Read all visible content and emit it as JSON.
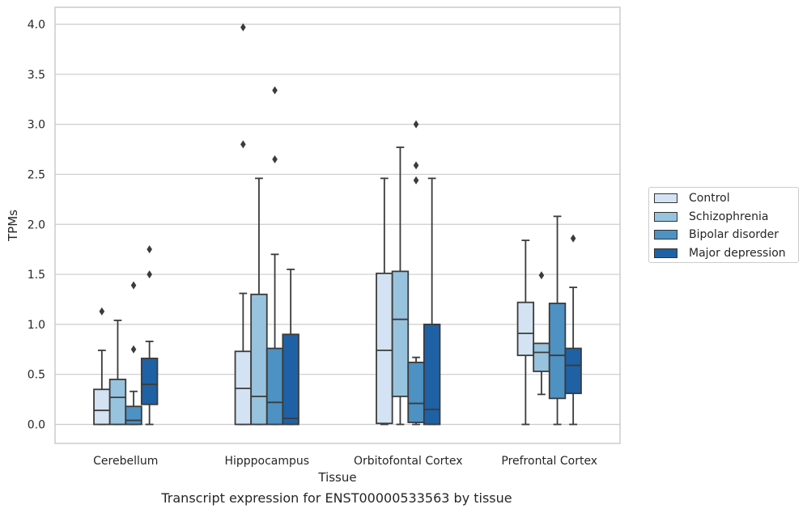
{
  "chart_data": {
    "type": "box",
    "title": "",
    "caption": "Transcript expression for ENST00000533563 by tissue",
    "xlabel": "Tissue",
    "ylabel": "TPMs",
    "ylim": [
      -0.19,
      4.17
    ],
    "yticks": [
      "0.0",
      "0.5",
      "1.0",
      "1.5",
      "2.0",
      "2.5",
      "3.0",
      "3.5",
      "4.0"
    ],
    "grid": "horizontal",
    "legend_position": "right",
    "categories": [
      "Cerebellum",
      "Hipppocampus",
      "Orbitofontal Cortex",
      "Prefrontal Cortex"
    ],
    "series": [
      {
        "name": "Control",
        "color": "#d4e3f3",
        "boxes": [
          {
            "whislo": 0.0,
            "q1": 0.0,
            "med": 0.14,
            "q3": 0.35,
            "whishi": 0.74,
            "fliers": [
              1.13
            ]
          },
          {
            "whislo": 0.0,
            "q1": 0.0,
            "med": 0.36,
            "q3": 0.73,
            "whishi": 1.31,
            "fliers": [
              2.8,
              3.97
            ]
          },
          {
            "whislo": 0.0,
            "q1": 0.01,
            "med": 0.74,
            "q3": 1.51,
            "whishi": 2.46,
            "fliers": []
          },
          {
            "whislo": 0.0,
            "q1": 0.69,
            "med": 0.91,
            "q3": 1.22,
            "whishi": 1.84,
            "fliers": []
          }
        ]
      },
      {
        "name": "Schizophrenia",
        "color": "#98c3de",
        "boxes": [
          {
            "whislo": 0.0,
            "q1": 0.0,
            "med": 0.27,
            "q3": 0.45,
            "whishi": 1.04,
            "fliers": []
          },
          {
            "whislo": 0.0,
            "q1": 0.0,
            "med": 0.28,
            "q3": 1.3,
            "whishi": 2.46,
            "fliers": []
          },
          {
            "whislo": 0.0,
            "q1": 0.28,
            "med": 1.05,
            "q3": 1.53,
            "whishi": 2.77,
            "fliers": []
          },
          {
            "whislo": 0.3,
            "q1": 0.53,
            "med": 0.72,
            "q3": 0.81,
            "whishi": 0.81,
            "fliers": [
              1.49
            ]
          }
        ]
      },
      {
        "name": "Bipolar disorder",
        "color": "#4e91c3",
        "boxes": [
          {
            "whislo": 0.0,
            "q1": 0.0,
            "med": 0.04,
            "q3": 0.18,
            "whishi": 0.33,
            "fliers": [
              0.75,
              1.39
            ]
          },
          {
            "whislo": 0.0,
            "q1": 0.0,
            "med": 0.22,
            "q3": 0.76,
            "whishi": 1.7,
            "fliers": [
              2.65,
              3.34
            ]
          },
          {
            "whislo": 0.0,
            "q1": 0.02,
            "med": 0.21,
            "q3": 0.62,
            "whishi": 0.67,
            "fliers": [
              2.44,
              2.59,
              3.0
            ]
          },
          {
            "whislo": 0.0,
            "q1": 0.26,
            "med": 0.69,
            "q3": 1.21,
            "whishi": 2.08,
            "fliers": []
          }
        ]
      },
      {
        "name": "Major depression",
        "color": "#1f61a5",
        "boxes": [
          {
            "whislo": 0.0,
            "q1": 0.2,
            "med": 0.4,
            "q3": 0.66,
            "whishi": 0.83,
            "fliers": [
              1.5,
              1.75
            ]
          },
          {
            "whislo": 0.0,
            "q1": 0.0,
            "med": 0.06,
            "q3": 0.9,
            "whishi": 1.55,
            "fliers": []
          },
          {
            "whislo": 0.0,
            "q1": 0.0,
            "med": 0.15,
            "q3": 1.0,
            "whishi": 2.46,
            "fliers": []
          },
          {
            "whislo": 0.0,
            "q1": 0.31,
            "med": 0.59,
            "q3": 0.76,
            "whishi": 1.37,
            "fliers": [
              1.86
            ]
          }
        ]
      }
    ]
  }
}
